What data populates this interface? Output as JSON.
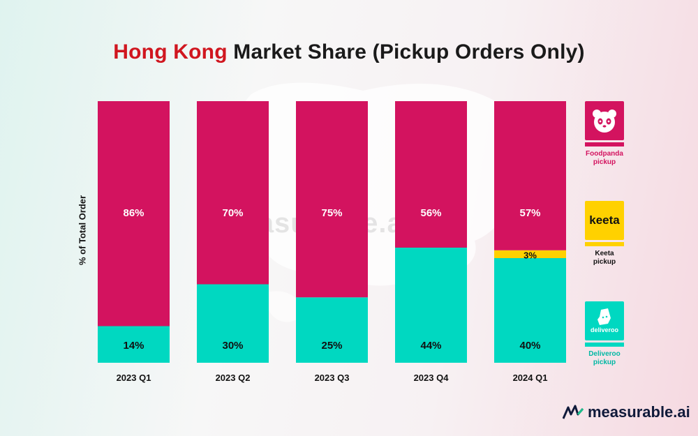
{
  "title": {
    "accent": "Hong Kong",
    "rest": "Market Share (Pickup Orders Only)"
  },
  "watermark": "measurable.ai",
  "brand": {
    "name": "measurable.ai"
  },
  "colors": {
    "foodpanda": "#d3135f",
    "keeta": "#ffd100",
    "deliveroo": "#00d8c1"
  },
  "legend": [
    {
      "label": "Foodpanda pickup",
      "logo_text": "",
      "icon": "panda-icon",
      "color": "#d3135f"
    },
    {
      "label": "Keeta pickup",
      "logo_text": "keeta",
      "icon": "keeta-logo-icon",
      "color": "#ffd100"
    },
    {
      "label": "Deliveroo pickup",
      "logo_text": "deliveroo",
      "icon": "kangaroo-icon",
      "color": "#00d8c1"
    }
  ],
  "chart_data": {
    "type": "bar",
    "stacked": true,
    "categories": [
      "2023 Q1",
      "2023 Q2",
      "2023 Q3",
      "2023 Q4",
      "2024 Q1"
    ],
    "ylabel": "% of Total Order",
    "ylim": [
      0,
      100
    ],
    "series": [
      {
        "name": "Deliveroo pickup",
        "color": "#00d8c1",
        "values": [
          14,
          30,
          25,
          44,
          40
        ],
        "labels": [
          "14%",
          "30%",
          "25%",
          "44%",
          "40%"
        ]
      },
      {
        "name": "Keeta pickup",
        "color": "#ffd100",
        "values": [
          0,
          0,
          0,
          0,
          3
        ],
        "labels": [
          "",
          "",
          "",
          "",
          "3%"
        ]
      },
      {
        "name": "Foodpanda pickup",
        "color": "#d3135f",
        "values": [
          86,
          70,
          75,
          56,
          57
        ],
        "labels": [
          "86%",
          "70%",
          "75%",
          "56%",
          "57%"
        ]
      }
    ]
  }
}
